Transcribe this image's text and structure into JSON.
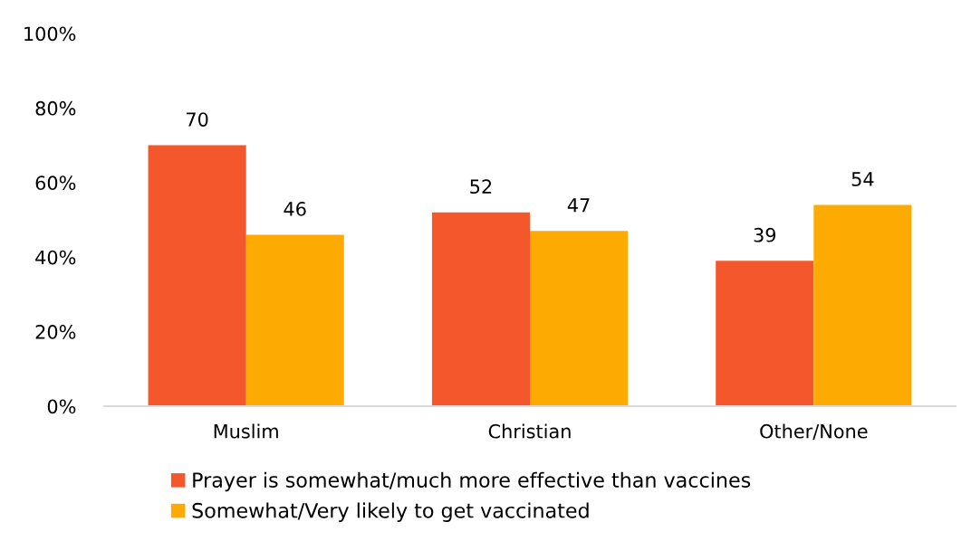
{
  "chart_data": {
    "type": "bar",
    "categories": [
      "Muslim",
      "Christian",
      "Other/None"
    ],
    "series": [
      {
        "name": "Prayer is somewhat/much more effective than vaccines",
        "color": "#f3572b",
        "values": [
          70,
          52,
          39
        ]
      },
      {
        "name": "Somewhat/Very likely to get vaccinated",
        "color": "#fdab02",
        "values": [
          46,
          47,
          54
        ]
      }
    ],
    "ylim": [
      0,
      100
    ],
    "yticks": [
      {
        "value": 0,
        "label": "0%"
      },
      {
        "value": 20,
        "label": "20%"
      },
      {
        "value": 40,
        "label": "40%"
      },
      {
        "value": 60,
        "label": "60%"
      },
      {
        "value": 80,
        "label": "80%"
      },
      {
        "value": 100,
        "label": "100%"
      }
    ],
    "data_labels": true,
    "grid": false,
    "legend": "bottom"
  }
}
